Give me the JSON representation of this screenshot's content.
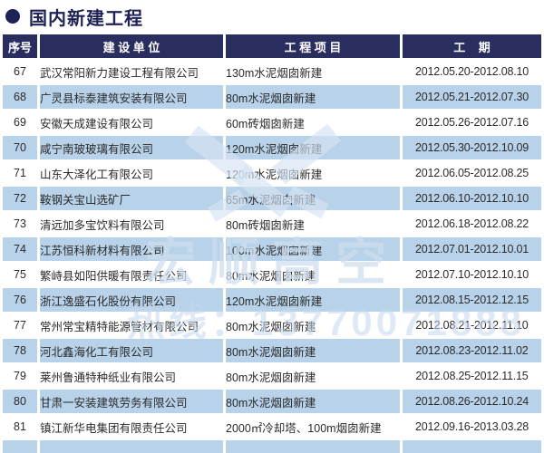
{
  "page": {
    "title": "国内新建工程"
  },
  "colors": {
    "header_bg": "#2a2e5f",
    "title_text": "#1e2256",
    "row_alt_bg": "#b7d2e9",
    "body_text": "#2b2b2b"
  },
  "table": {
    "headers": [
      "序号",
      "建 设 单 位",
      "工 程 项 目",
      "工    期"
    ],
    "rows": [
      {
        "no": "67",
        "company": "武汉常阳新力建设工程有限公司",
        "project": "130m水泥烟囱新建",
        "period": "2012.05.20-2012.08.10"
      },
      {
        "no": "68",
        "company": "广灵县标泰建筑安装有限公司",
        "project": "80m水泥烟囱新建",
        "period": "2012.05.21-2012.07.30"
      },
      {
        "no": "69",
        "company": "安徽天成建设有限公司",
        "project": "60m砖烟囱新建",
        "period": "2012.05.26-2012.07.16"
      },
      {
        "no": "70",
        "company": "咸宁南玻玻璃有限公司",
        "project": "120m水泥烟囱新建",
        "period": "2012.05.30-2012.10.09"
      },
      {
        "no": "71",
        "company": "山东大泽化工有限公司",
        "project": "120m水泥烟囱新建",
        "period": "2012.06.05-2012.08.25"
      },
      {
        "no": "72",
        "company": "鞍钢关宝山选矿厂",
        "project": "65m水泥烟囱新建",
        "period": "2012.06.10-2012.10.10"
      },
      {
        "no": "73",
        "company": "清远加多宝饮料有限公司",
        "project": "80m砖烟囱新建",
        "period": "2012.06.18-2012.08.22"
      },
      {
        "no": "74",
        "company": "江苏恒科新材料有限公司",
        "project": "100m水泥烟囱新建",
        "period": "2012.07.01-2012.10.01"
      },
      {
        "no": "75",
        "company": "繁峙县如阳供暖有限责任公司",
        "project": "80m水泥烟囱新建",
        "period": "2012.07.10-2012.10.10"
      },
      {
        "no": "76",
        "company": "浙江逸盛石化股份有限公司",
        "project": "120m水泥烟囱新建",
        "period": "2012.08.15-2012.12.15"
      },
      {
        "no": "77",
        "company": "常州常宝精特能源管材有限公司",
        "project": "80m水泥烟囱新建",
        "period": "2012.08.21-2012.11.10"
      },
      {
        "no": "78",
        "company": "河北鑫海化工有限公司",
        "project": "80m水泥烟囱新建",
        "period": "2012.08.23-2012.11.02"
      },
      {
        "no": "79",
        "company": "莱州鲁通特种纸业有限公司",
        "project": "80m水泥烟囱新建",
        "period": "2012.08.25-2012.11.15"
      },
      {
        "no": "80",
        "company": "甘肃一安装建筑劳务有限公司",
        "project": "80m水泥烟囱新建",
        "period": "2012.08.26-2012.10.24"
      },
      {
        "no": "81",
        "company": "镇江新华电集团有限责任公司",
        "project": "2000㎡冷却塔、100m烟囱新建",
        "period": "2012.09.16-2013.03.28"
      }
    ]
  },
  "watermark": {
    "brand": "宏顺高空",
    "hotline": "热线：13770071888"
  }
}
